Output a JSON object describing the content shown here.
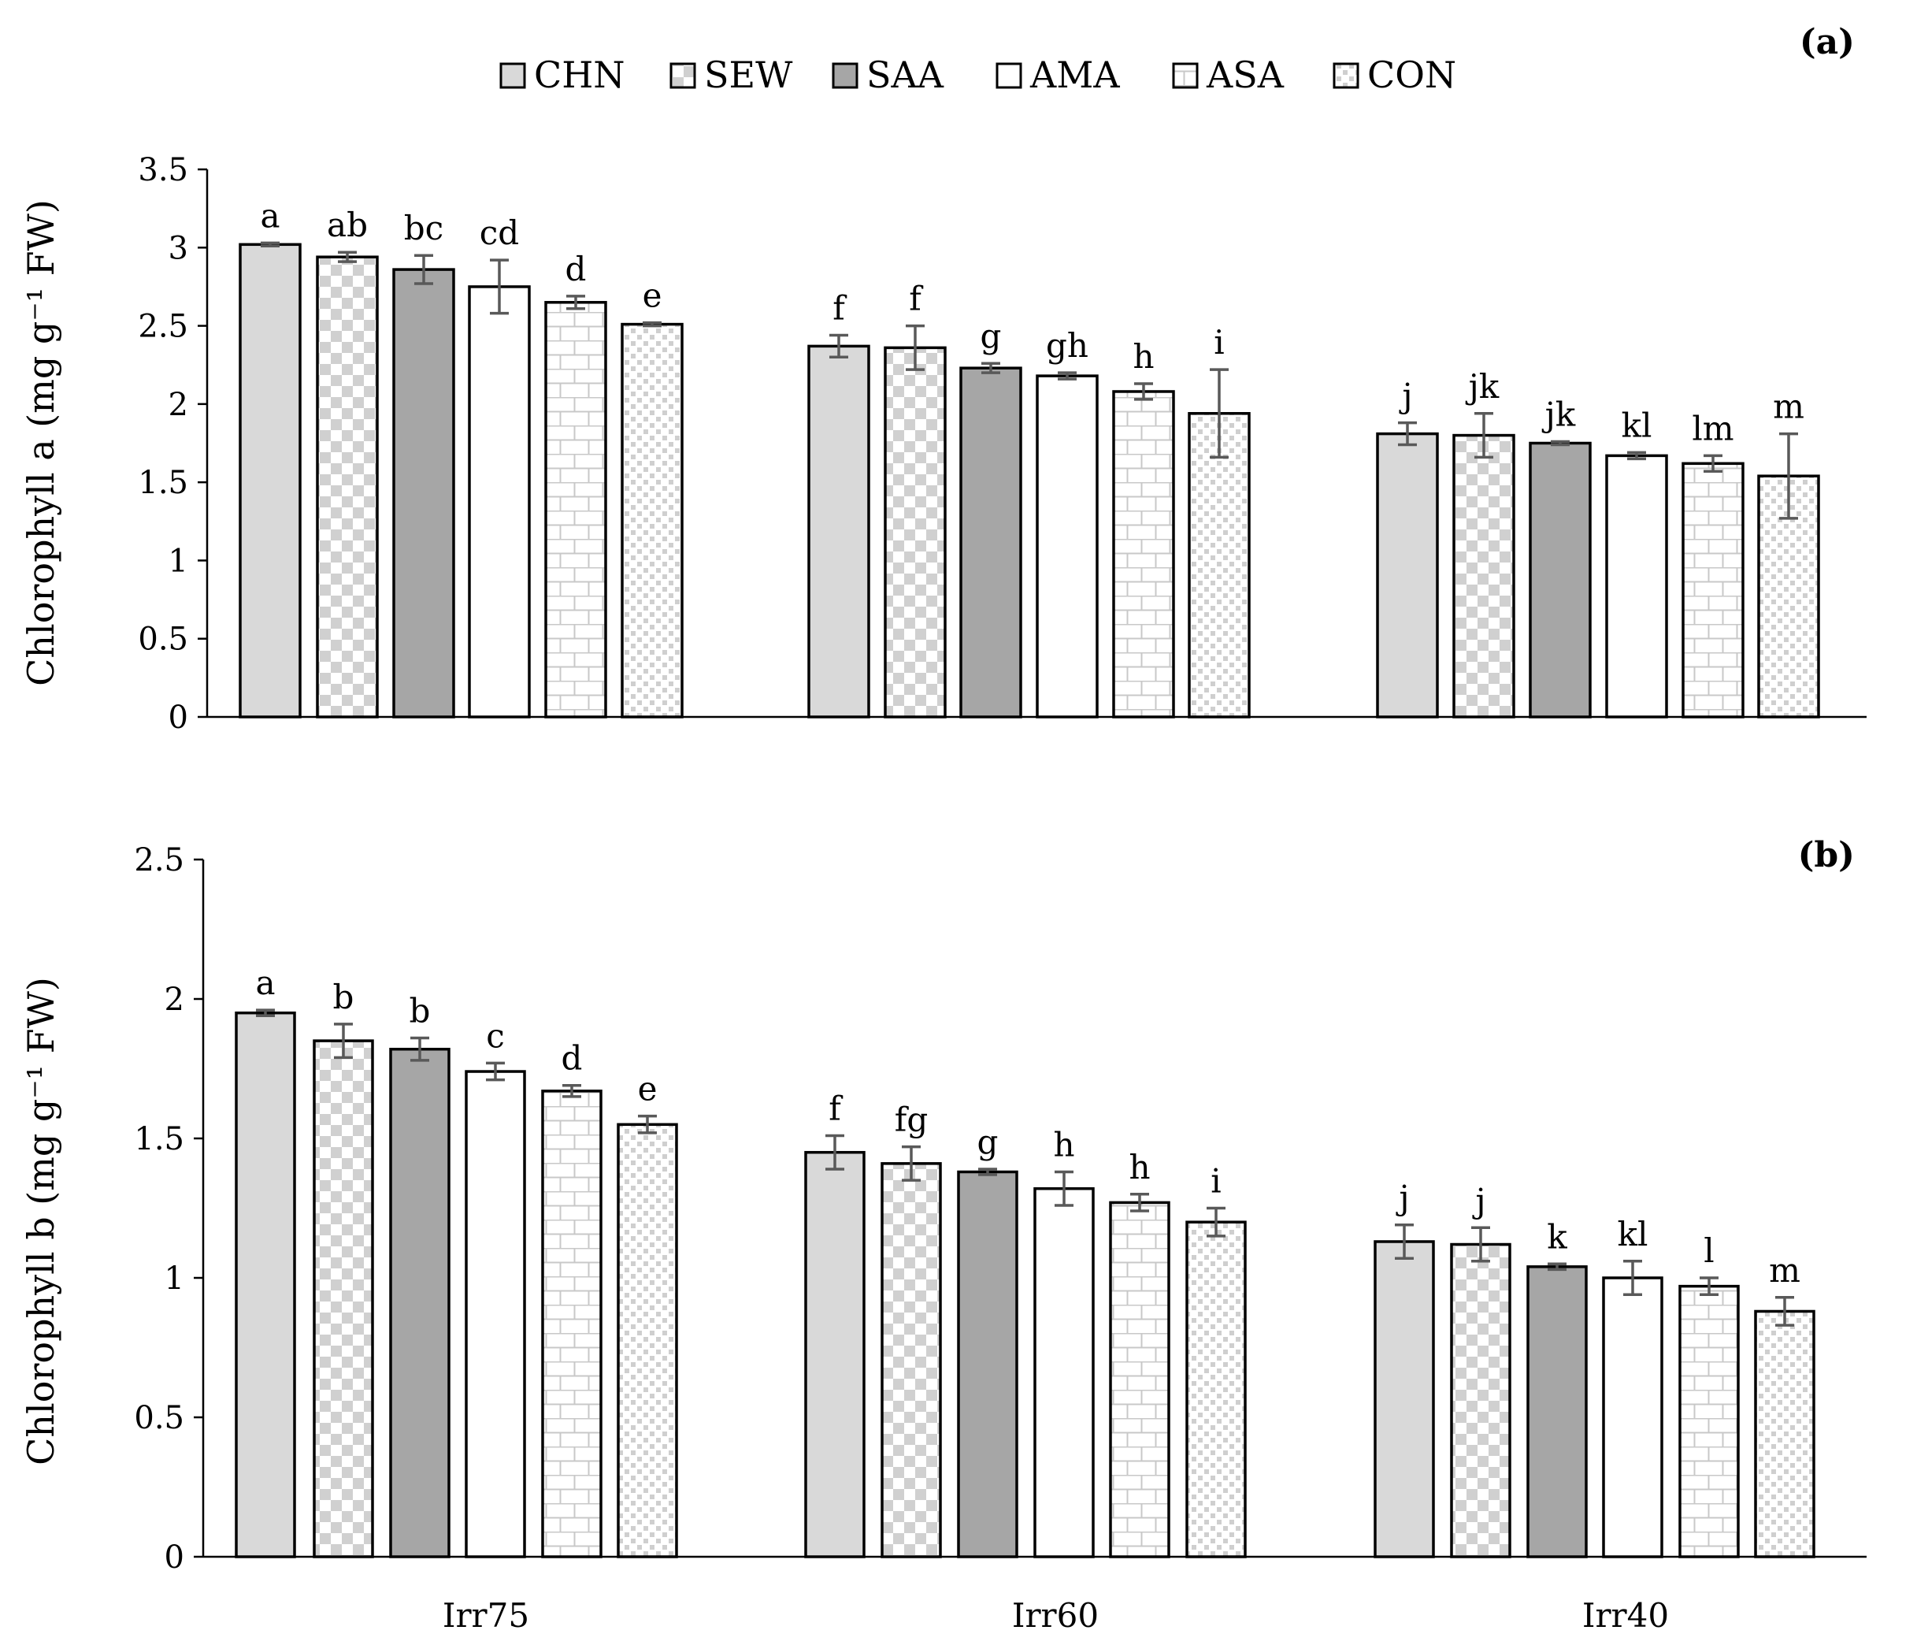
{
  "legend": [
    {
      "label": "CHN",
      "pattern": "solid-light"
    },
    {
      "label": "SEW",
      "pattern": "checker"
    },
    {
      "label": "SAA",
      "pattern": "solid-dark"
    },
    {
      "label": "AMA",
      "pattern": "white"
    },
    {
      "label": "ASA",
      "pattern": "brick"
    },
    {
      "label": "CON",
      "pattern": "dots"
    }
  ],
  "colors": {
    "light": "#d9d9d9",
    "dark": "#a6a6a6",
    "check": "#d0d0d0",
    "pattern_line": "#c8c8c8",
    "axis": "#000000",
    "error": "#595959"
  },
  "chart_data": [
    {
      "type": "bar",
      "panel": "(a)",
      "title": "",
      "categories": [
        "Irr75",
        "Irr60",
        "Irr40"
      ],
      "xlabel": "",
      "ylabel": "Chlorophyll a (mg g⁻¹ FW)",
      "ylim": [
        0,
        3.5
      ],
      "yticks": [
        0,
        0.5,
        1,
        1.5,
        2,
        2.5,
        3,
        3.5
      ],
      "ytick_labels": [
        "0",
        "0.5",
        "1",
        "1.5",
        "2",
        "2.5",
        "3",
        "3.5"
      ],
      "series": [
        {
          "name": "CHN",
          "values": [
            3.02,
            2.37,
            1.81
          ],
          "errors": [
            0.01,
            0.07,
            0.07
          ],
          "letters": [
            "a",
            "f",
            "j"
          ]
        },
        {
          "name": "SEW",
          "values": [
            2.94,
            2.36,
            1.8
          ],
          "errors": [
            0.03,
            0.14,
            0.14
          ],
          "letters": [
            "ab",
            "f",
            "jk"
          ]
        },
        {
          "name": "SAA",
          "values": [
            2.86,
            2.23,
            1.75
          ],
          "errors": [
            0.09,
            0.03,
            0.01
          ],
          "letters": [
            "bc",
            "g",
            "jk"
          ]
        },
        {
          "name": "AMA",
          "values": [
            2.75,
            2.18,
            1.67
          ],
          "errors": [
            0.17,
            0.02,
            0.02
          ],
          "letters": [
            "cd",
            "gh",
            "kl"
          ]
        },
        {
          "name": "ASA",
          "values": [
            2.65,
            2.08,
            1.62
          ],
          "errors": [
            0.04,
            0.05,
            0.05
          ],
          "letters": [
            "d",
            "h",
            "lm"
          ]
        },
        {
          "name": "CON",
          "values": [
            2.51,
            1.94,
            1.54
          ],
          "errors": [
            0.01,
            0.28,
            0.27
          ],
          "letters": [
            "e",
            "i",
            "m"
          ]
        }
      ]
    },
    {
      "type": "bar",
      "panel": "(b)",
      "title": "",
      "categories": [
        "Irr75",
        "Irr60",
        "Irr40"
      ],
      "xlabel": "",
      "ylabel": "Chlorophyll b (mg g⁻¹ FW)",
      "ylim": [
        0,
        2.5
      ],
      "yticks": [
        0,
        0.5,
        1,
        1.5,
        2,
        2.5
      ],
      "ytick_labels": [
        "0",
        "0.5",
        "1",
        "1.5",
        "2",
        "2.5"
      ],
      "series": [
        {
          "name": "CHN",
          "values": [
            1.95,
            1.45,
            1.13
          ],
          "errors": [
            0.01,
            0.06,
            0.06
          ],
          "letters": [
            "a",
            "f",
            "j"
          ]
        },
        {
          "name": "SEW",
          "values": [
            1.85,
            1.41,
            1.12
          ],
          "errors": [
            0.06,
            0.06,
            0.06
          ],
          "letters": [
            "b",
            "fg",
            "j"
          ]
        },
        {
          "name": "SAA",
          "values": [
            1.82,
            1.38,
            1.04
          ],
          "errors": [
            0.04,
            0.01,
            0.01
          ],
          "letters": [
            "b",
            "g",
            "k"
          ]
        },
        {
          "name": "AMA",
          "values": [
            1.74,
            1.32,
            1.0
          ],
          "errors": [
            0.03,
            0.06,
            0.06
          ],
          "letters": [
            "c",
            "h",
            "kl"
          ]
        },
        {
          "name": "ASA",
          "values": [
            1.67,
            1.27,
            0.97
          ],
          "errors": [
            0.02,
            0.03,
            0.03
          ],
          "letters": [
            "d",
            "h",
            "l"
          ]
        },
        {
          "name": "CON",
          "values": [
            1.55,
            1.2,
            0.88
          ],
          "errors": [
            0.03,
            0.05,
            0.05
          ],
          "letters": [
            "e",
            "i",
            "m"
          ]
        }
      ]
    }
  ]
}
